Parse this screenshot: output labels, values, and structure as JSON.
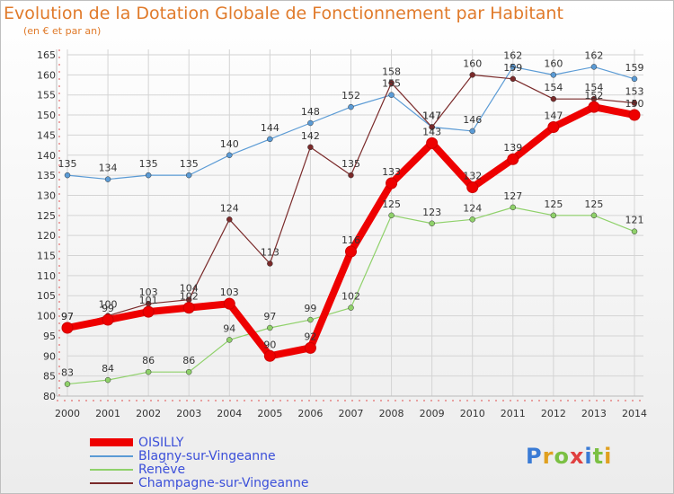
{
  "header": {
    "title": "Evolution de la Dotation Globale de Fonctionnement par Habitant",
    "subtitle": "(en € et par an)"
  },
  "logo": {
    "text": "Proxiti",
    "colors": [
      "#3a7bd5",
      "#e0a020",
      "#7bc043",
      "#e04040",
      "#3a7bd5",
      "#7bc043",
      "#e0a020"
    ]
  },
  "chart_data": {
    "type": "line",
    "x": [
      2000,
      2001,
      2002,
      2003,
      2004,
      2005,
      2006,
      2007,
      2008,
      2009,
      2010,
      2011,
      2012,
      2013,
      2014
    ],
    "ylim": [
      80,
      165
    ],
    "yticks": [
      80,
      85,
      90,
      95,
      100,
      105,
      110,
      115,
      120,
      125,
      130,
      135,
      140,
      145,
      150,
      155,
      160,
      165
    ],
    "grid": true,
    "legend_position": "bottom-left",
    "series": [
      {
        "name": "Blagny-sur-Vingeanne",
        "color": "#5b9bd5",
        "values": [
          135,
          134,
          135,
          135,
          140,
          144,
          148,
          152,
          155,
          147,
          146,
          162,
          160,
          162,
          159
        ]
      },
      {
        "name": "Renève",
        "color": "#8fd16a",
        "values": [
          83,
          84,
          86,
          86,
          94,
          97,
          99,
          102,
          125,
          123,
          124,
          127,
          125,
          125,
          121
        ]
      },
      {
        "name": "Champagne-sur-Vingeanne",
        "color": "#7a2a2a",
        "values": [
          97,
          100,
          103,
          104,
          124,
          113,
          142,
          135,
          158,
          147,
          160,
          159,
          154,
          154,
          153
        ]
      },
      {
        "name": "OISILLY",
        "color": "#ee0000",
        "values": [
          97,
          99,
          101,
          102,
          103,
          90,
          92,
          116,
          133,
          143,
          132,
          139,
          147,
          152,
          150
        ]
      }
    ]
  }
}
